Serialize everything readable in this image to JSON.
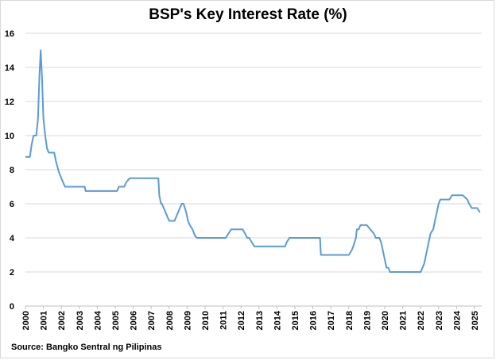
{
  "chart_data": {
    "type": "line",
    "title": "BSP's Key Interest Rate (%)",
    "source": "Source: Bangko Sentral ng Pilipinas",
    "xlabel": "",
    "ylabel": "",
    "xlim": [
      2000,
      2025.4
    ],
    "ylim": [
      0,
      16
    ],
    "yticks": [
      0,
      2,
      4,
      6,
      8,
      10,
      12,
      14,
      16
    ],
    "xticks": [
      2000,
      2001,
      2002,
      2003,
      2004,
      2005,
      2006,
      2007,
      2008,
      2009,
      2010,
      2011,
      2012,
      2013,
      2014,
      2015,
      2016,
      2017,
      2018,
      2019,
      2020,
      2021,
      2022,
      2023,
      2024,
      2025
    ],
    "grid": "horizontal",
    "line_color": "#5b9bd5",
    "series": [
      {
        "x": [
          2000.0,
          2000.25,
          2000.35,
          2000.45,
          2000.6,
          2000.7,
          2000.78,
          2000.85,
          2000.92,
          2001.0,
          2001.1,
          2001.2,
          2001.3,
          2001.4,
          2001.6,
          2001.7,
          2001.85,
          2002.0,
          2002.2,
          2002.3,
          2002.6,
          2003.0,
          2003.3,
          2003.35,
          2003.5,
          2004.0,
          2004.5,
          2005.0,
          2005.1,
          2005.2,
          2005.5,
          2005.6,
          2005.8,
          2006.0,
          2006.5,
          2007.0,
          2007.2,
          2007.4,
          2007.45,
          2007.55,
          2007.6,
          2007.7,
          2007.8,
          2007.9,
          2008.0,
          2008.3,
          2008.4,
          2008.6,
          2008.7,
          2008.8,
          2008.95,
          2009.05,
          2009.15,
          2009.3,
          2009.45,
          2009.55,
          2010.0,
          2010.5,
          2011.0,
          2011.15,
          2011.3,
          2011.45,
          2011.6,
          2011.8,
          2011.9,
          2012.1,
          2012.35,
          2012.45,
          2012.6,
          2012.75,
          2012.9,
          2013.0,
          2013.5,
          2014.0,
          2014.45,
          2014.55,
          2014.7,
          2015.0,
          2015.5,
          2016.0,
          2016.4,
          2016.45,
          2017.0,
          2017.5,
          2018.0,
          2018.15,
          2018.25,
          2018.4,
          2018.45,
          2018.55,
          2018.65,
          2018.75,
          2018.85,
          2019.0,
          2019.2,
          2019.4,
          2019.5,
          2019.6,
          2019.7,
          2019.8,
          2019.9,
          2020.0,
          2020.1,
          2020.2,
          2020.3,
          2020.4,
          2020.5,
          2020.9,
          2021.0,
          2021.5,
          2022.0,
          2022.2,
          2022.35,
          2022.45,
          2022.55,
          2022.7,
          2022.8,
          2022.9,
          2023.0,
          2023.1,
          2023.2,
          2023.5,
          2023.6,
          2023.75,
          2023.85,
          2024.0,
          2024.35,
          2024.6,
          2024.7,
          2024.85,
          2024.95,
          2025.15,
          2025.3
        ],
        "y": [
          8.75,
          8.75,
          9.5,
          10.0,
          10.0,
          11.0,
          13.5,
          15.0,
          13.5,
          11.0,
          10.0,
          9.25,
          9.0,
          9.0,
          9.0,
          8.5,
          7.9,
          7.5,
          7.0,
          7.0,
          7.0,
          7.0,
          7.0,
          6.75,
          6.75,
          6.75,
          6.75,
          6.75,
          6.75,
          7.0,
          7.0,
          7.25,
          7.5,
          7.5,
          7.5,
          7.5,
          7.5,
          7.5,
          6.5,
          6.0,
          6.0,
          5.75,
          5.5,
          5.25,
          5.0,
          5.0,
          5.25,
          5.75,
          6.0,
          6.0,
          5.5,
          5.0,
          4.75,
          4.5,
          4.1,
          4.0,
          4.0,
          4.0,
          4.0,
          4.0,
          4.25,
          4.5,
          4.5,
          4.5,
          4.5,
          4.5,
          4.0,
          4.0,
          3.75,
          3.5,
          3.5,
          3.5,
          3.5,
          3.5,
          3.5,
          3.75,
          4.0,
          4.0,
          4.0,
          4.0,
          4.0,
          3.0,
          3.0,
          3.0,
          3.0,
          3.25,
          3.5,
          4.0,
          4.5,
          4.5,
          4.75,
          4.75,
          4.75,
          4.75,
          4.5,
          4.25,
          4.0,
          4.0,
          4.0,
          3.75,
          3.25,
          2.75,
          2.25,
          2.25,
          2.0,
          2.0,
          2.0,
          2.0,
          2.0,
          2.0,
          2.0,
          2.5,
          3.25,
          3.75,
          4.25,
          4.5,
          5.0,
          5.5,
          6.0,
          6.25,
          6.25,
          6.25,
          6.25,
          6.5,
          6.5,
          6.5,
          6.5,
          6.25,
          6.0,
          5.75,
          5.75,
          5.75,
          5.5
        ]
      }
    ]
  }
}
